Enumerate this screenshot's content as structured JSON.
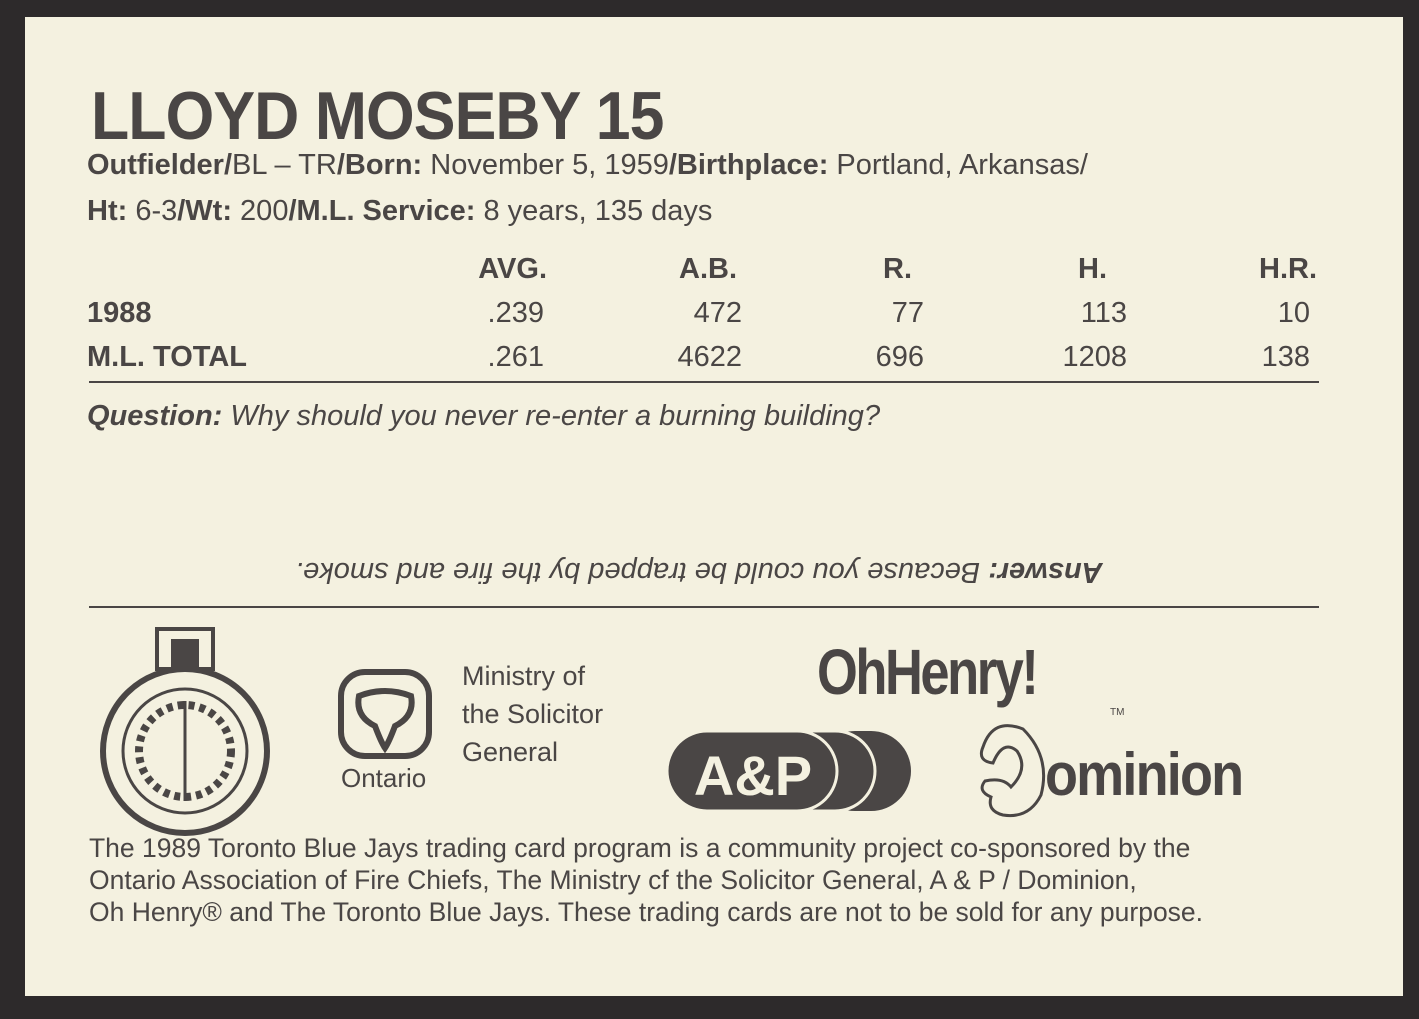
{
  "player": {
    "name": "LLOYD MOSEBY 15",
    "line1": [
      {
        "label": "Outfielder",
        "value": ""
      },
      {
        "label": "/",
        "value": "BL – TR"
      },
      {
        "label": "/Born:",
        "value": " November 5, 1959"
      },
      {
        "label": "/Birthplace:",
        "value": " Portland, Arkansas/"
      }
    ],
    "line2": [
      {
        "label": "Ht:",
        "value": " 6-3"
      },
      {
        "label": "/Wt:",
        "value": " 200"
      },
      {
        "label": "/M.L. Service:",
        "value": " 8 years, 135 days"
      }
    ]
  },
  "stats": {
    "headers": [
      "AVG.",
      "A.B.",
      "R.",
      "H.",
      "H.R."
    ],
    "rows": [
      {
        "label": "1988",
        "values": [
          ".239",
          "472",
          "77",
          "113",
          "10"
        ]
      },
      {
        "label": "M.L. TOTAL",
        "values": [
          ".261",
          "4622",
          "696",
          "1208",
          "138"
        ]
      }
    ]
  },
  "quiz": {
    "question_label": "Question:",
    "question": " Why should you never re-enter a burning building?",
    "answer_label": "Answer:",
    "answer": " Because you could be trapped by the fire and smoke."
  },
  "sponsors": {
    "fire_chiefs_seal": "Ontario Association Fire Chiefs",
    "ministry": [
      "Ministry of",
      "the Solicitor",
      "General"
    ],
    "ontario": "Ontario",
    "oh_henry": "OhHenry!",
    "tm": "TM",
    "ap": "A&P",
    "dominion": "ominion"
  },
  "footer": [
    "The 1989 Toronto Blue Jays trading card program is a community project co-sponsored by the",
    "Ontario Association of Fire Chiefs, The Ministry cf the Solicitor General, A & P / Dominion,",
    "Oh Henry® and The Toronto Blue Jays. These trading cards are not to be sold for any purpose."
  ],
  "colors": {
    "card": "#f4f1e0",
    "ink": "#4a4645",
    "background": "#2d2a2b"
  }
}
